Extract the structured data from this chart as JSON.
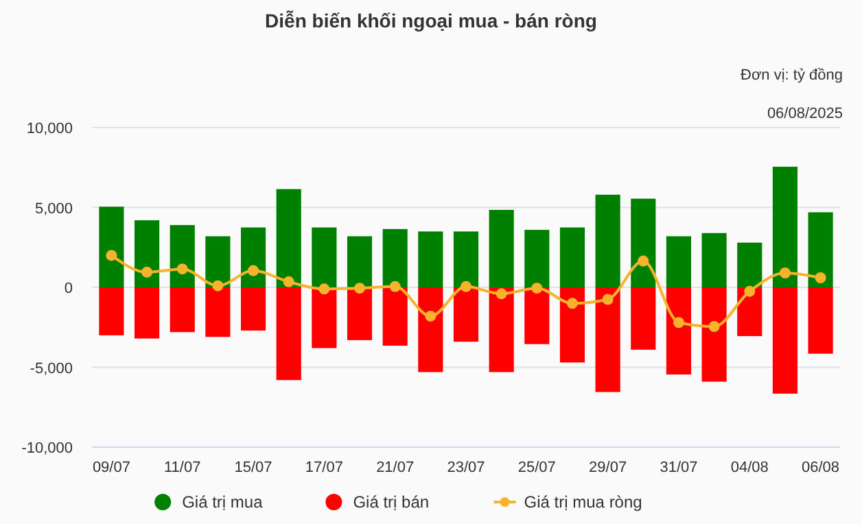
{
  "chart_data": {
    "type": "bar",
    "title": "Diễn biến khối ngoại mua - bán ròng",
    "annotations": [
      "Đơn vị: tỷ đồng",
      "06/08/2025"
    ],
    "categories": [
      "09/07",
      null,
      "11/07",
      null,
      "15/07",
      null,
      "17/07",
      null,
      "21/07",
      null,
      "23/07",
      null,
      "25/07",
      null,
      "29/07",
      null,
      "31/07",
      null,
      "04/08",
      null,
      "06/08"
    ],
    "stacked": true,
    "grid": "y",
    "legend": "bottom",
    "ylim": [
      -10000,
      10000
    ],
    "yticks": [
      {
        "value": -10000,
        "label": "-10,000"
      },
      {
        "value": -5000,
        "label": "-5,000"
      },
      0,
      {
        "value": 5000,
        "label": "5,000"
      },
      {
        "value": 10000,
        "label": "10,000"
      }
    ],
    "series": [
      {
        "name": "Giá trị mua",
        "color": "#008000",
        "values": [
          5050,
          4200,
          3900,
          3200,
          3750,
          6150,
          3750,
          3200,
          3650,
          3500,
          3500,
          4850,
          3600,
          3750,
          5800,
          5550,
          3200,
          3400,
          2800,
          7550,
          4700
        ]
      },
      {
        "name": "Giá trị bán",
        "color": "#ff0000",
        "values": [
          -3000,
          -3200,
          -2800,
          -3100,
          -2700,
          -5800,
          -3800,
          -3300,
          -3650,
          -5300,
          -3400,
          -5300,
          -3550,
          -4700,
          -6550,
          -3900,
          -5450,
          -5900,
          -3050,
          -6650,
          -4150
        ]
      },
      {
        "name": "Giá trị mua ròng",
        "type": "line",
        "color": "#f7b32b",
        "marker": "circle",
        "line_style": "solid",
        "values": [
          2000,
          950,
          1150,
          100,
          1050,
          350,
          -100,
          -50,
          50,
          -1800,
          50,
          -400,
          -50,
          -1000,
          -750,
          1650,
          -2200,
          -2450,
          -250,
          900,
          600
        ]
      }
    ]
  }
}
